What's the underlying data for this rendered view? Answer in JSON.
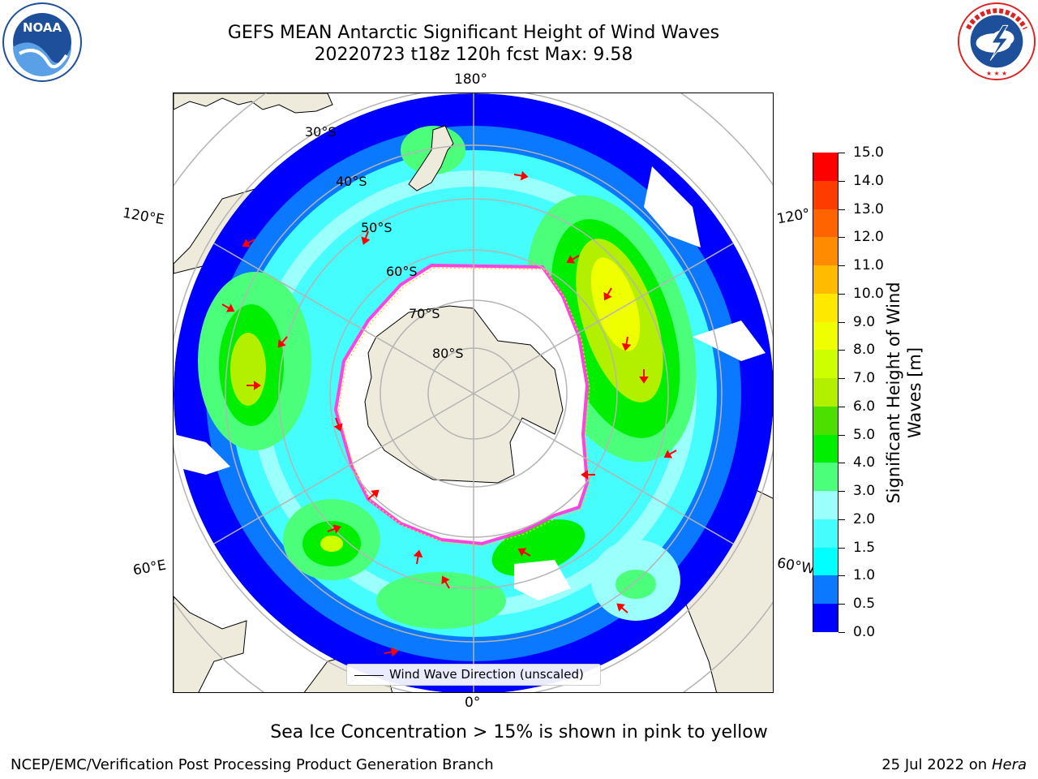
{
  "title_line1": "GEFS MEAN Antarctic Significant Height of Wind Waves",
  "title_line2": "20220723 t18z 120h fcst   Max: 9.58",
  "logos": {
    "left": "noaa-logo",
    "right": "nws-logo",
    "left_text": "NOAA",
    "right_text": "NATIONAL WEATHER SERVICE"
  },
  "map": {
    "projection": "south-polar-stereographic",
    "longitude_labels": {
      "top": "180°",
      "bottom": "0°",
      "upper_left": "120°E",
      "upper_right": "120°",
      "lower_left": "60°E",
      "lower_right": "60°W"
    },
    "latitude_labels": [
      "30°S",
      "40°S",
      "50°S",
      "60°S",
      "70°S",
      "80°S"
    ],
    "legend_label": "Wind Wave Direction (unscaled)",
    "arrow_color": "#ff0000",
    "land_color": "#efebdc",
    "grid_color": "#b4b4b4"
  },
  "colorbar": {
    "label": "Significant Height of Wind Waves [m]",
    "label_line1": "Significant Height of Wind",
    "label_line2": "Waves [m]",
    "ticks": [
      "0.0",
      "0.5",
      "1.0",
      "1.5",
      "2.0",
      "3.0",
      "4.0",
      "5.0",
      "6.0",
      "7.0",
      "8.0",
      "9.0",
      "10.0",
      "11.0",
      "12.0",
      "13.0",
      "14.0",
      "15.0"
    ],
    "colors": [
      "#0000ff",
      "#0a78ff",
      "#00ffff",
      "#46fdfd",
      "#9bfffb",
      "#4cff7b",
      "#00ef00",
      "#4ddf00",
      "#b3f000",
      "#cdff00",
      "#f0ff00",
      "#ffe800",
      "#ffbb00",
      "#ff8c00",
      "#ff6400",
      "#ff3c00",
      "#ff0000"
    ]
  },
  "sea_ice_note": "Sea Ice Concentration > 15% is shown in pink to yellow",
  "footer_left": "NCEP/EMC/Verification Post Processing Product Generation Branch",
  "footer_date": "25 Jul 2022 on",
  "footer_machine": "Hera"
}
